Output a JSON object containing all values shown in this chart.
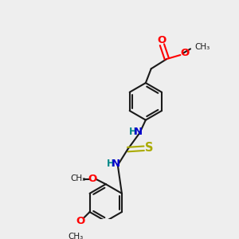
{
  "background_color": "#eeeeee",
  "bond_color": "#1a1a1a",
  "atom_colors": {
    "O": "#ff0000",
    "N": "#0000cc",
    "S": "#aaaa00",
    "H": "#008888"
  },
  "figsize": [
    3.0,
    3.0
  ],
  "dpi": 100,
  "xlim": [
    0,
    10
  ],
  "ylim": [
    0,
    10
  ]
}
